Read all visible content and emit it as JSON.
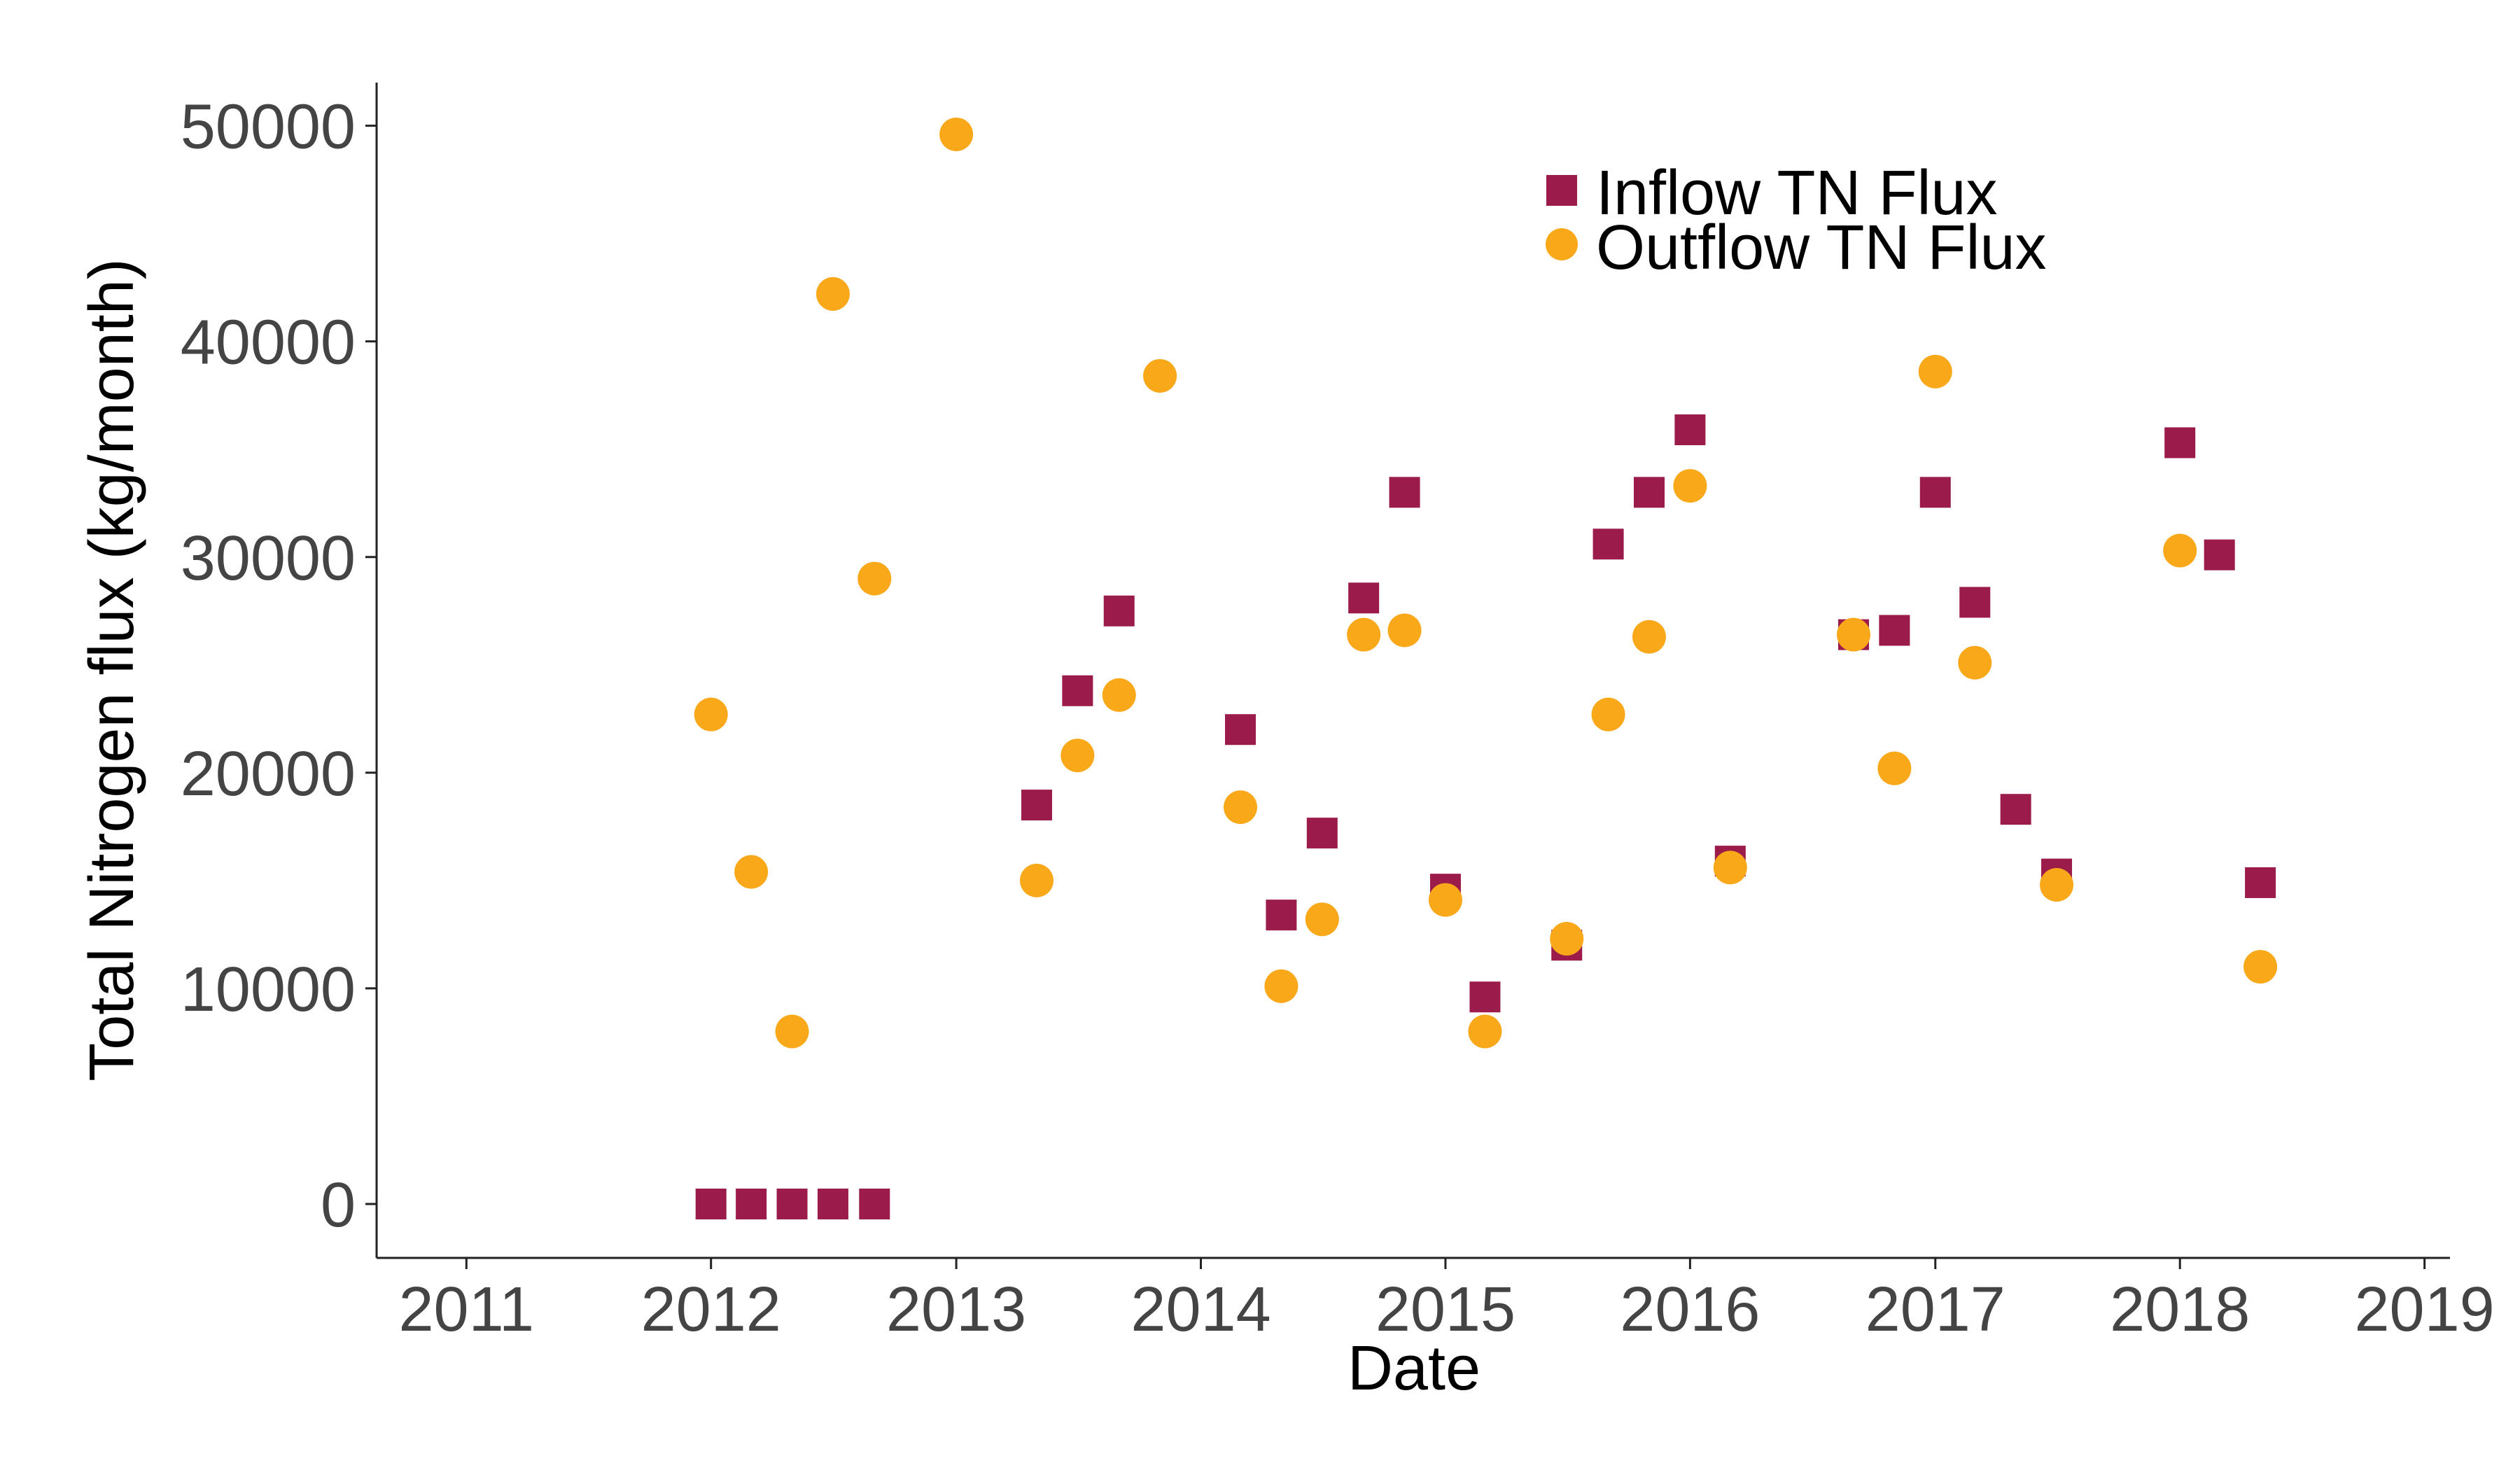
{
  "chart_data": {
    "type": "scatter",
    "title": "",
    "xlabel": "Date",
    "ylabel": "Total Nitrogen flux (kg/month)",
    "xlim": [
      "2010-08-20",
      "2019-02-08"
    ],
    "ylim": [
      -2500,
      52000
    ],
    "x_ticks": [
      "2011",
      "2012",
      "2013",
      "2014",
      "2015",
      "2016",
      "2017",
      "2018",
      "2019"
    ],
    "y_ticks": [
      0,
      10000,
      20000,
      30000,
      40000,
      50000
    ],
    "y_tick_labels": [
      "0",
      "10000",
      "20000",
      "30000",
      "40000",
      "50000"
    ],
    "grid": false,
    "legend_position": "top-right",
    "series": [
      {
        "name": "Inflow TN Flux",
        "marker": "square",
        "color": "#9B1B4B",
        "points": [
          {
            "x": "2012-01-01",
            "y": 0
          },
          {
            "x": "2012-03-01",
            "y": 0
          },
          {
            "x": "2012-05-01",
            "y": 0
          },
          {
            "x": "2012-07-01",
            "y": 0
          },
          {
            "x": "2012-09-01",
            "y": 0
          },
          {
            "x": "2013-05-01",
            "y": 18500
          },
          {
            "x": "2013-07-01",
            "y": 23800
          },
          {
            "x": "2013-09-01",
            "y": 27500
          },
          {
            "x": "2014-03-01",
            "y": 22000
          },
          {
            "x": "2014-05-01",
            "y": 13400
          },
          {
            "x": "2014-07-01",
            "y": 17200
          },
          {
            "x": "2014-09-01",
            "y": 28100
          },
          {
            "x": "2014-11-01",
            "y": 33000
          },
          {
            "x": "2015-01-01",
            "y": 14600
          },
          {
            "x": "2015-03-01",
            "y": 9600
          },
          {
            "x": "2015-07-01",
            "y": 12000
          },
          {
            "x": "2015-09-01",
            "y": 30600
          },
          {
            "x": "2015-11-01",
            "y": 33000
          },
          {
            "x": "2016-01-01",
            "y": 35900
          },
          {
            "x": "2016-03-01",
            "y": 15900
          },
          {
            "x": "2016-09-01",
            "y": 26400
          },
          {
            "x": "2016-11-01",
            "y": 26600
          },
          {
            "x": "2017-01-01",
            "y": 33000
          },
          {
            "x": "2017-03-01",
            "y": 27900
          },
          {
            "x": "2017-05-01",
            "y": 18300
          },
          {
            "x": "2017-07-01",
            "y": 15300
          },
          {
            "x": "2018-01-01",
            "y": 35300
          },
          {
            "x": "2018-03-01",
            "y": 30100
          },
          {
            "x": "2018-05-01",
            "y": 14900
          }
        ]
      },
      {
        "name": "Outflow TN Flux",
        "marker": "circle",
        "color": "#F9A81A",
        "points": [
          {
            "x": "2012-01-01",
            "y": 22700
          },
          {
            "x": "2012-03-01",
            "y": 15400
          },
          {
            "x": "2012-05-01",
            "y": 8000
          },
          {
            "x": "2012-07-01",
            "y": 42200
          },
          {
            "x": "2012-09-01",
            "y": 29000
          },
          {
            "x": "2013-01-01",
            "y": 49600
          },
          {
            "x": "2013-05-01",
            "y": 15000
          },
          {
            "x": "2013-07-01",
            "y": 20800
          },
          {
            "x": "2013-09-01",
            "y": 23600
          },
          {
            "x": "2013-11-01",
            "y": 38400
          },
          {
            "x": "2014-03-01",
            "y": 18400
          },
          {
            "x": "2014-05-01",
            "y": 10100
          },
          {
            "x": "2014-07-01",
            "y": 13200
          },
          {
            "x": "2014-09-01",
            "y": 26400
          },
          {
            "x": "2014-11-01",
            "y": 26600
          },
          {
            "x": "2015-01-01",
            "y": 14100
          },
          {
            "x": "2015-03-01",
            "y": 8000
          },
          {
            "x": "2015-07-01",
            "y": 12300
          },
          {
            "x": "2015-09-01",
            "y": 22700
          },
          {
            "x": "2015-11-01",
            "y": 26300
          },
          {
            "x": "2016-01-01",
            "y": 33300
          },
          {
            "x": "2016-03-01",
            "y": 15600
          },
          {
            "x": "2016-09-01",
            "y": 26400
          },
          {
            "x": "2016-11-01",
            "y": 20200
          },
          {
            "x": "2017-01-01",
            "y": 38600
          },
          {
            "x": "2017-03-01",
            "y": 25100
          },
          {
            "x": "2017-07-01",
            "y": 14800
          },
          {
            "x": "2018-01-01",
            "y": 30300
          },
          {
            "x": "2018-05-01",
            "y": 11000
          }
        ]
      }
    ]
  }
}
